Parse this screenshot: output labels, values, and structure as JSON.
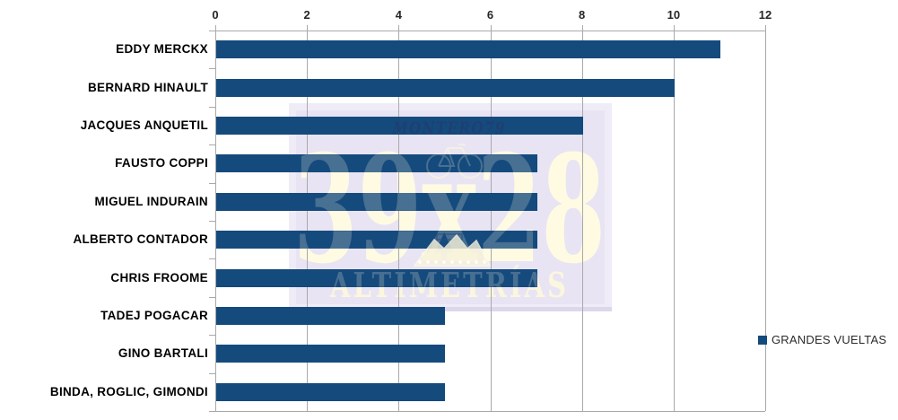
{
  "chart_data": {
    "type": "bar",
    "orientation": "horizontal",
    "title": "",
    "categories": [
      "EDDY MERCKX",
      "BERNARD HINAULT",
      "JACQUES ANQUETIL",
      "FAUSTO COPPI",
      "MIGUEL INDURAIN",
      "ALBERTO CONTADOR",
      "CHRIS FROOME",
      "TADEJ POGACAR",
      "GINO BARTALI",
      "BINDA, ROGLIC, GIMONDI"
    ],
    "series": [
      {
        "name": "GRANDES VUELTAS",
        "values": [
          11,
          10,
          8,
          7,
          7,
          7,
          7,
          5,
          5,
          5
        ]
      }
    ],
    "xlim": [
      0,
      12
    ],
    "x_ticks": [
      0,
      2,
      4,
      6,
      8,
      10,
      12
    ],
    "grid": "vertical",
    "legend_position": "right",
    "bar_color": "#154A7D"
  },
  "legend": {
    "label": "GRANDES VUELTAS",
    "swatch_color": "#154A7D"
  },
  "watermark": {
    "top_text": "MONTERO79",
    "big_text": "39x28",
    "bottom_text": "ALTIMETRÍAS",
    "panel_color": "#E8E4F4",
    "cream_color": "#FFFBE3"
  },
  "colors": {
    "bar": "#154A7D",
    "gridline": "#A9A9A9",
    "axis_text": "#262626",
    "category_text": "#000000",
    "background": "#FFFFFF"
  }
}
